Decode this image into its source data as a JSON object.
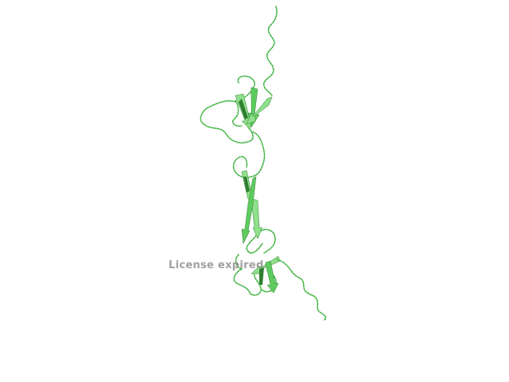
{
  "viewer": {
    "background_color": "#ffffff",
    "watermark_text": "License expired",
    "watermark_color": "#8f8f8f"
  },
  "molecule": {
    "representation": "cartoon",
    "colors": {
      "light": "#8fe08a",
      "mid": "#5ecb5e",
      "dark": "#2f7f32"
    }
  }
}
